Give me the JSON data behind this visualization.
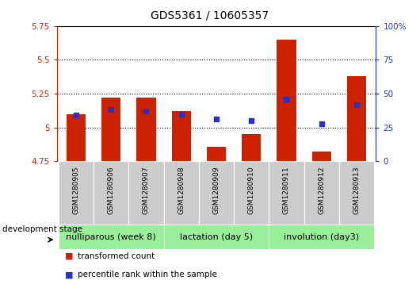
{
  "title": "GDS5361 / 10605357",
  "samples": [
    "GSM1280905",
    "GSM1280906",
    "GSM1280907",
    "GSM1280908",
    "GSM1280909",
    "GSM1280910",
    "GSM1280911",
    "GSM1280912",
    "GSM1280913"
  ],
  "bar_values": [
    5.1,
    5.22,
    5.22,
    5.12,
    4.86,
    4.95,
    5.65,
    4.82,
    5.38
  ],
  "bar_bottom": 4.75,
  "percentile_values": [
    34,
    38,
    37,
    35,
    31,
    30,
    46,
    28,
    42
  ],
  "ylim_left": [
    4.75,
    5.75
  ],
  "ylim_right": [
    0,
    100
  ],
  "yticks_left": [
    4.75,
    5.0,
    5.25,
    5.5,
    5.75
  ],
  "yticks_right": [
    0,
    25,
    50,
    75,
    100
  ],
  "ytick_labels_left": [
    "4.75",
    "5",
    "5.25",
    "5.5",
    "5.75"
  ],
  "ytick_labels_right": [
    "0",
    "25",
    "50",
    "75",
    "100%"
  ],
  "grid_values": [
    5.0,
    5.25,
    5.5
  ],
  "bar_color": "#cc2200",
  "dot_color": "#2233cc",
  "stage_groups": [
    {
      "label": "nulliparous (week 8)",
      "indices": [
        0,
        1,
        2
      ]
    },
    {
      "label": "lactation (day 5)",
      "indices": [
        3,
        4,
        5
      ]
    },
    {
      "label": "involution (day3)",
      "indices": [
        6,
        7,
        8
      ]
    }
  ],
  "legend_items": [
    {
      "label": "transformed count",
      "color": "#cc2200"
    },
    {
      "label": "percentile rank within the sample",
      "color": "#2233cc"
    }
  ],
  "stage_label": "development stage",
  "stage_color": "#99ee99",
  "sample_bg_color": "#cccccc",
  "title_fontsize": 10,
  "tick_fontsize": 7.5,
  "sample_fontsize": 6.5,
  "stage_fontsize": 8,
  "legend_fontsize": 7.5
}
